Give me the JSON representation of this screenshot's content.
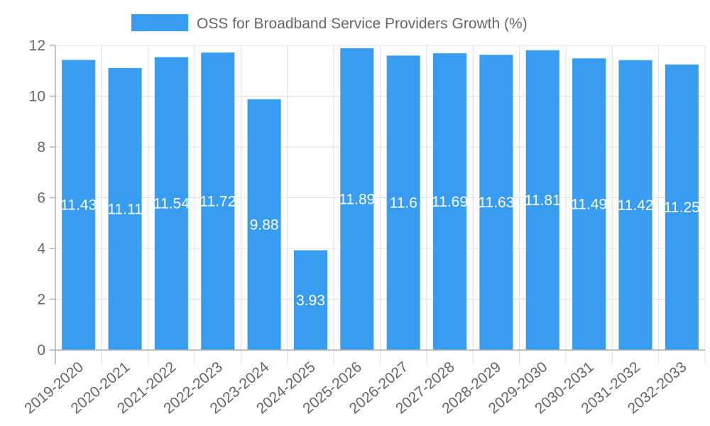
{
  "chart_data": {
    "type": "bar",
    "title": "",
    "xlabel": "",
    "ylabel": "",
    "ylim": [
      0,
      12
    ],
    "yticks": [
      0,
      2,
      4,
      6,
      8,
      10,
      12
    ],
    "grid": true,
    "legend_position": "top-center",
    "categories": [
      "2019-2020",
      "2020-2021",
      "2021-2022",
      "2022-2023",
      "2023-2024",
      "2024-2025",
      "2025-2026",
      "2026-2027",
      "2027-2028",
      "2028-2029",
      "2029-2030",
      "2030-2031",
      "2031-2032",
      "2032-2033"
    ],
    "series": [
      {
        "name": "OSS for Broadband Service Providers Growth (%)",
        "color": "#389cf0",
        "values": [
          11.43,
          11.11,
          11.54,
          11.72,
          9.88,
          3.93,
          11.89,
          11.6,
          11.69,
          11.63,
          11.81,
          11.49,
          11.42,
          11.25
        ]
      }
    ]
  }
}
